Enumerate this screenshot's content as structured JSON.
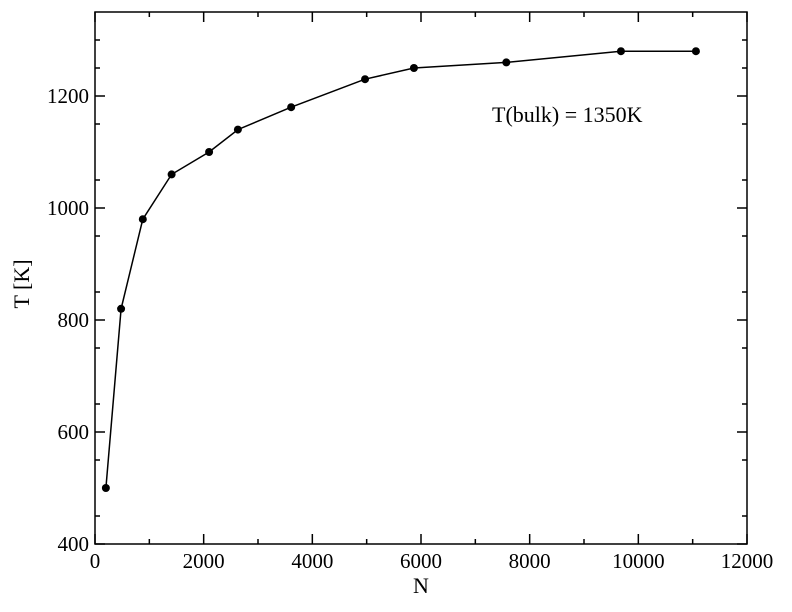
{
  "chart_data": {
    "type": "line",
    "title": "",
    "xlabel": "N",
    "ylabel": "T [K]",
    "xlim": [
      0,
      12000
    ],
    "ylim": [
      400,
      1350
    ],
    "x_ticks": [
      0,
      2000,
      4000,
      6000,
      8000,
      10000,
      12000
    ],
    "y_ticks": [
      400,
      600,
      800,
      1000,
      1200
    ],
    "x_tick_labels": [
      "0",
      "2000",
      "4000",
      "6000",
      "8000",
      "10000",
      "12000"
    ],
    "y_tick_labels": [
      "400",
      "600",
      "800",
      "1000",
      "1200"
    ],
    "grid": false,
    "legend": "none",
    "annotation": "T(bulk) = 1350K",
    "series": [
      {
        "color": "#000000",
        "marker": "filled-circle",
        "x": [
          200,
          480,
          880,
          1410,
          2100,
          2630,
          3610,
          4970,
          5870,
          7570,
          9680,
          11060
        ],
        "y": [
          500,
          820,
          980,
          1060,
          1100,
          1140,
          1180,
          1230,
          1250,
          1260,
          1280,
          1280
        ]
      }
    ]
  }
}
